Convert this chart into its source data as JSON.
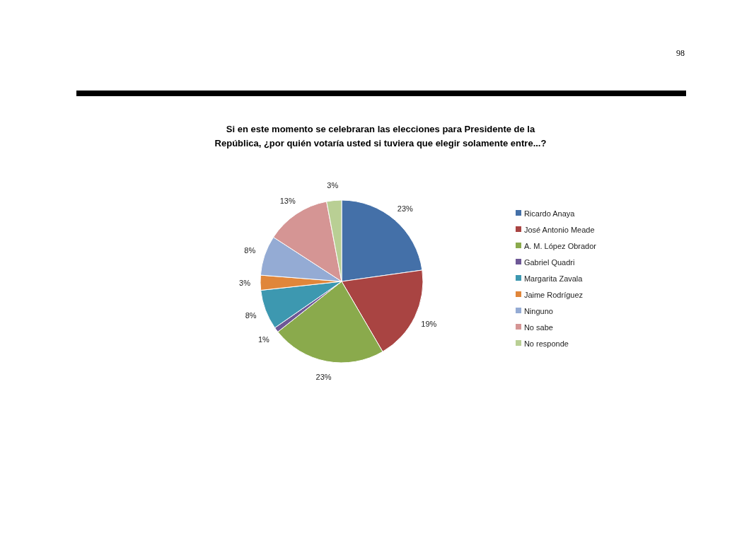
{
  "chart_data": {
    "type": "pie",
    "title": "Si en este momento se celebraran las elecciones para Presidente de la República, ¿por quién votaría usted si tuviera que elegir solamente entre...?",
    "categories": [
      "Ricardo Anaya",
      "José Antonio Meade",
      "A. M. López Obrador",
      "Gabriel Quadri",
      "Margarita Zavala",
      "Jaime Rodríguez",
      "Ninguno",
      "No sabe",
      "No responde"
    ],
    "values": [
      23,
      19,
      23,
      1,
      8,
      3,
      8,
      13,
      3
    ],
    "value_labels": [
      "23%",
      "19%",
      "23%",
      "1%",
      "8%",
      "3%",
      "8%",
      "13%",
      "3%"
    ],
    "colors": [
      "#4470a8",
      "#a94442",
      "#8aaa4c",
      "#6e5896",
      "#3d98b0",
      "#e0863a",
      "#94abd4",
      "#d59594",
      "#b9cf94"
    ],
    "legend": "right",
    "annotations": [
      "98"
    ]
  }
}
